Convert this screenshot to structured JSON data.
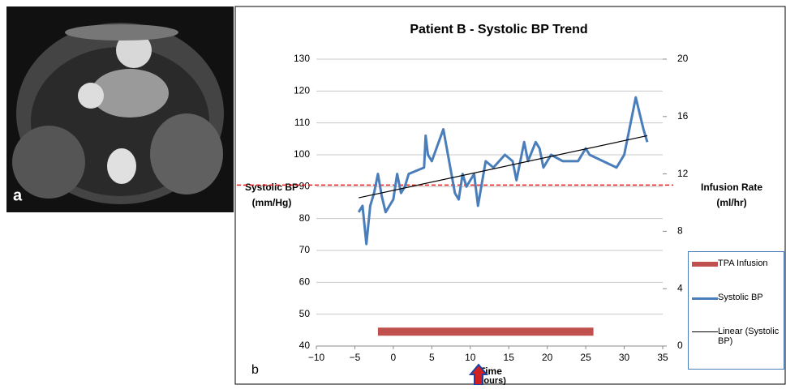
{
  "panels": [
    "a",
    "b"
  ],
  "chart_data": {
    "type": "line",
    "title": "Patient B - Systolic BP Trend",
    "xlabel": [
      "Time",
      "(hours)"
    ],
    "ylabel": [
      "Systolic BP",
      "(mm/Hg)"
    ],
    "y2label": [
      "Infusion Rate",
      "(ml/hr)"
    ],
    "xlim": [
      -10,
      35
    ],
    "xticks": [
      {
        "value": -10,
        "label": "−10"
      },
      {
        "value": -5,
        "label": "−5"
      },
      0,
      5,
      10,
      15,
      20,
      25,
      30,
      35
    ],
    "ylim": [
      40,
      130
    ],
    "yticks": [
      40,
      50,
      60,
      70,
      80,
      90,
      100,
      110,
      120,
      130
    ],
    "y2lim": [
      0,
      20
    ],
    "y2ticks": [
      0,
      4,
      8,
      12,
      16,
      20
    ],
    "grid": true,
    "reference_line": {
      "value": 90.5,
      "color": "#e02020"
    },
    "series": [
      {
        "name": "TPA Infusion",
        "color": "#c0504d",
        "axis": "y2",
        "x": [
          -2,
          26
        ],
        "values": [
          1,
          1
        ]
      },
      {
        "name": "Systolic BP",
        "color": "#4a7ebb",
        "x": [
          -4.5,
          -4,
          -3.5,
          -3,
          -2.5,
          -2,
          -1.5,
          -1,
          0,
          0.5,
          1,
          1.5,
          2,
          4,
          4.2,
          4.5,
          5,
          6.5,
          8,
          8.5,
          9,
          9.5,
          10.5,
          11,
          12,
          13,
          14.5,
          15.5,
          16,
          17,
          17.5,
          18.5,
          19,
          19.5,
          20.5,
          22,
          24,
          25,
          25.5,
          29,
          30,
          31.5,
          32.5,
          33
        ],
        "values": [
          82,
          84,
          72,
          84,
          88,
          94,
          87,
          82,
          86,
          94,
          88,
          90,
          94,
          96,
          106,
          100,
          98,
          108,
          88,
          86,
          94,
          90,
          94,
          84,
          98,
          96,
          100,
          98,
          92,
          104,
          98,
          104,
          102,
          96,
          100,
          98,
          98,
          102,
          100,
          96,
          100,
          118,
          108,
          104
        ]
      },
      {
        "name": "Linear (Systolic BP)",
        "color": "#000000",
        "x": [
          -4.5,
          33
        ],
        "values": [
          86.5,
          106
        ]
      }
    ]
  }
}
